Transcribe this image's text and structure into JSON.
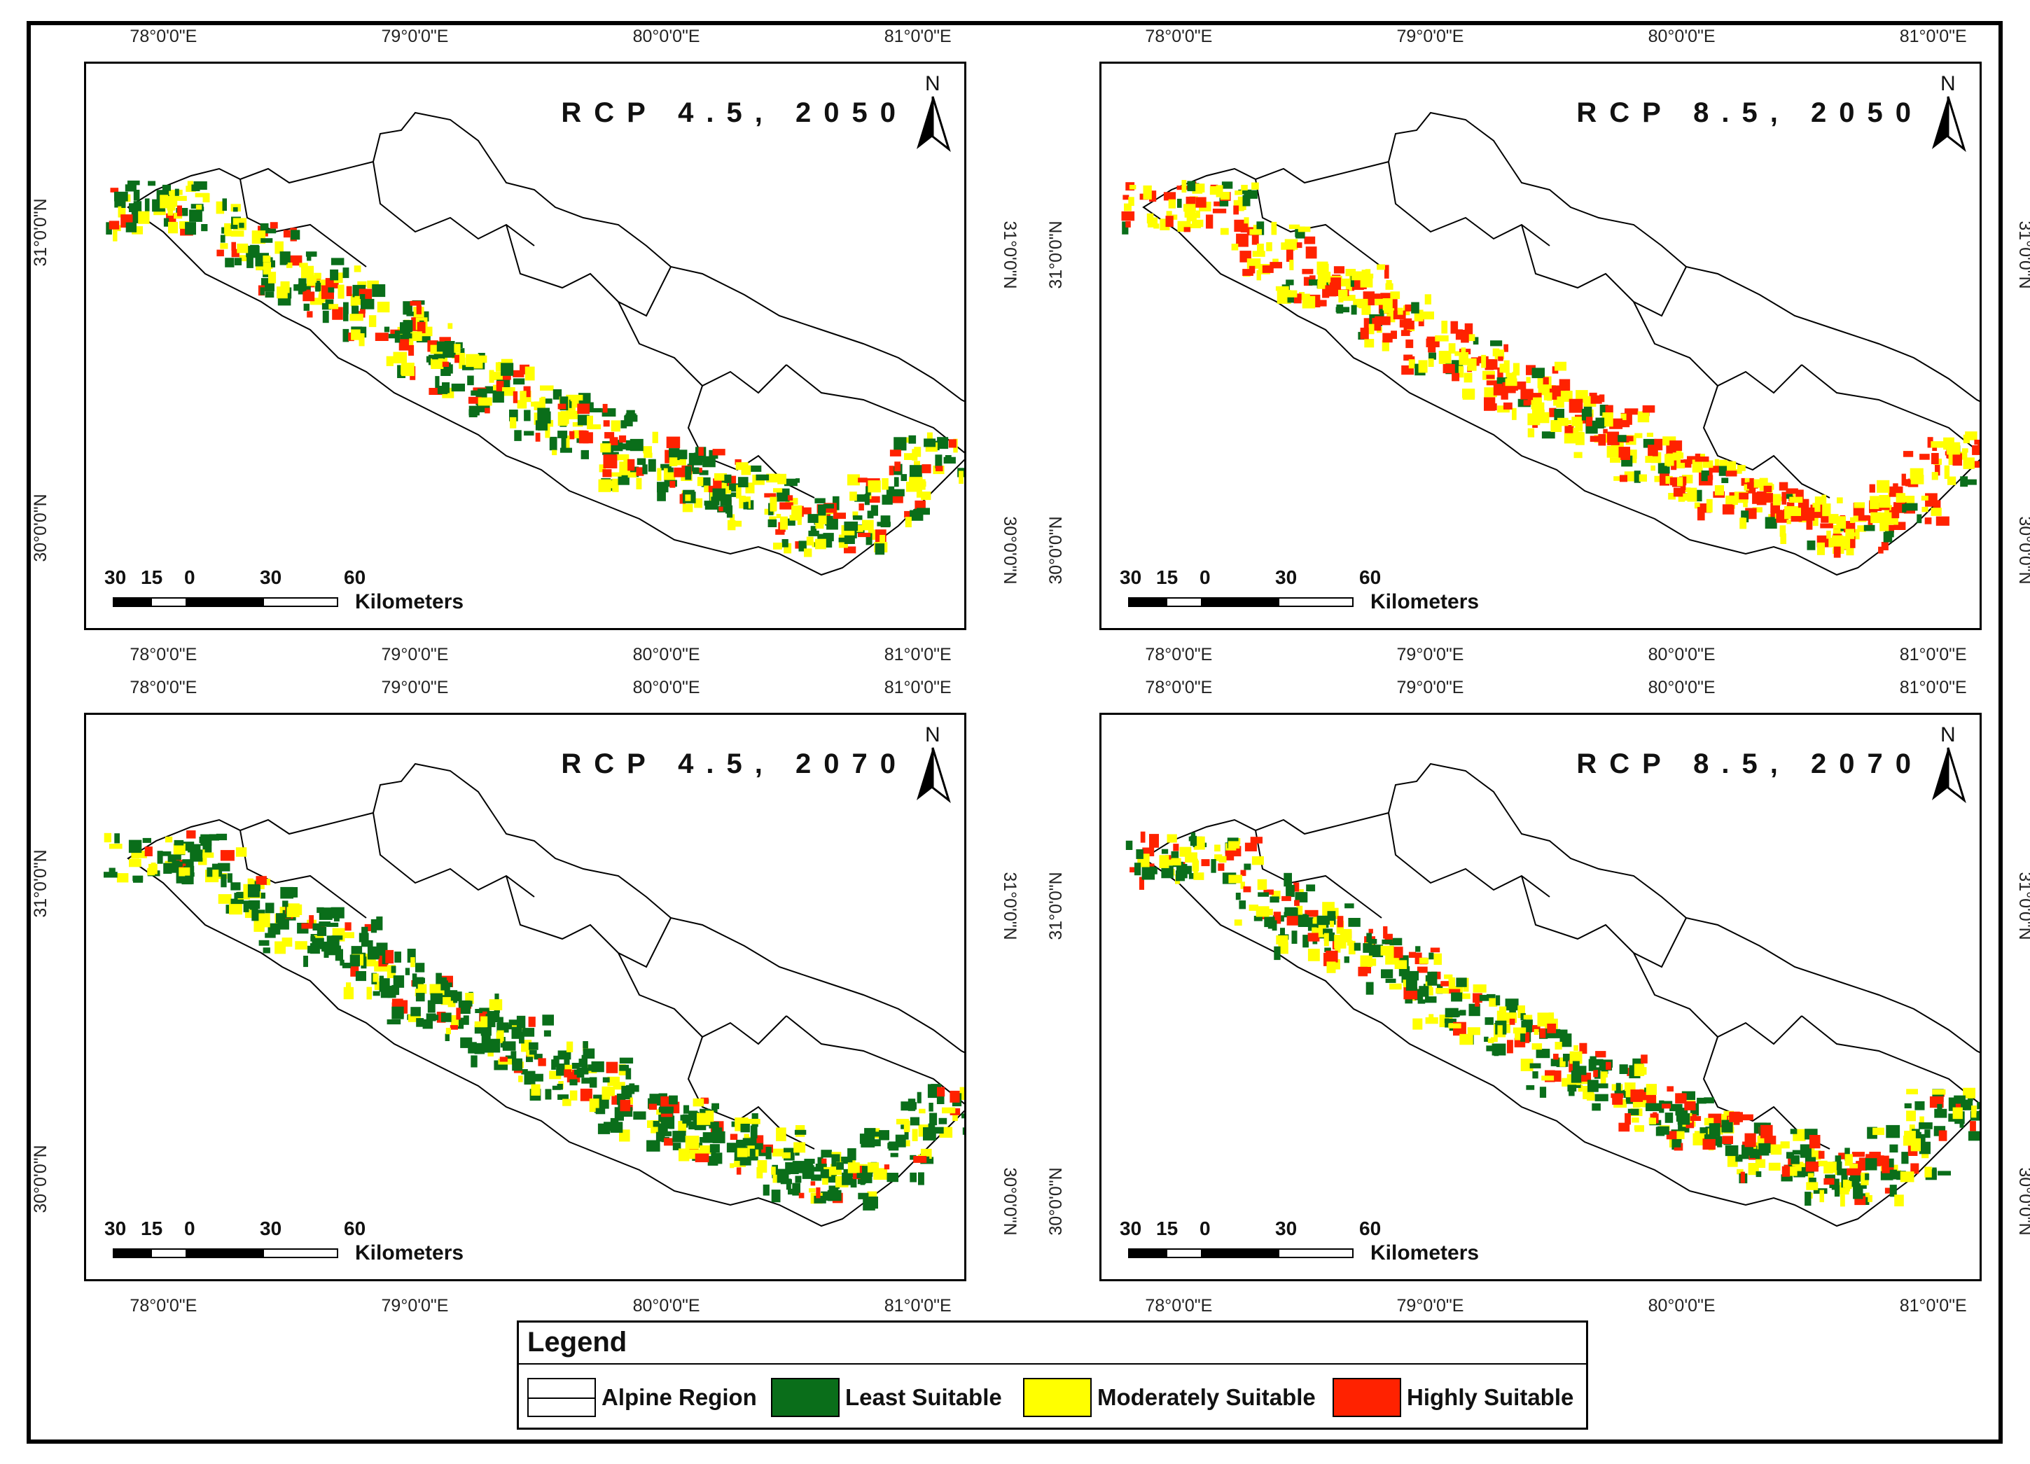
{
  "legend": {
    "title": "Legend",
    "items": [
      {
        "label": "Alpine Region",
        "color": "#ffffff",
        "kind": "outline"
      },
      {
        "label": "Least Suitable",
        "color": "#0a6e1a",
        "kind": "fill"
      },
      {
        "label": "Moderately Suitable",
        "color": "#ffff00",
        "kind": "fill"
      },
      {
        "label": "Highly Suitable",
        "color": "#ff2200",
        "kind": "fill"
      }
    ]
  },
  "scale": {
    "numbers": [
      "30",
      "15",
      "0",
      "30",
      "60"
    ],
    "unit": "Kilometers"
  },
  "north_label": "N",
  "axes": {
    "lon_ticks": [
      "78°0'0\"E",
      "79°0'0\"E",
      "80°0'0\"E",
      "81°0'0\"E"
    ],
    "lat_ticks": [
      "31°0'0\"N",
      "30°0'0\"N"
    ]
  },
  "panels": [
    {
      "title": "RCP 4.5, 2050",
      "dominant": "mixed-green-yellow-red"
    },
    {
      "title": "RCP 8.5, 2050",
      "dominant": "red-yellow"
    },
    {
      "title": "RCP 4.5, 2070",
      "dominant": "green-yellow"
    },
    {
      "title": "RCP 8.5, 2070",
      "dominant": "green-yellow-red"
    }
  ]
}
